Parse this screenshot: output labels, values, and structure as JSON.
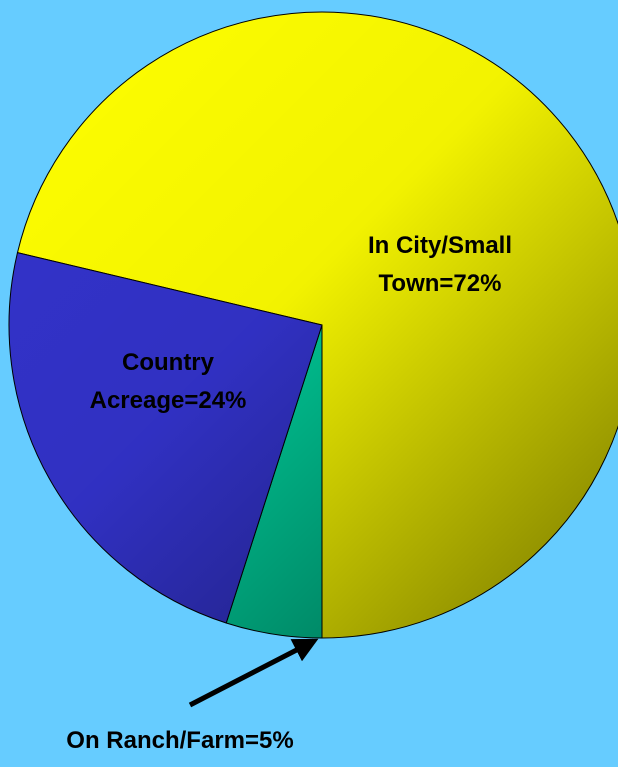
{
  "chart_data": {
    "type": "pie",
    "value_labels": [
      "In City/Small Town=72%",
      "On Ranch/Farm=5%",
      "Country Acreage=24%"
    ],
    "values": [
      72,
      5,
      24
    ],
    "colors": [
      "#ffff00",
      "#00cc99",
      "#3333cc"
    ]
  }
}
